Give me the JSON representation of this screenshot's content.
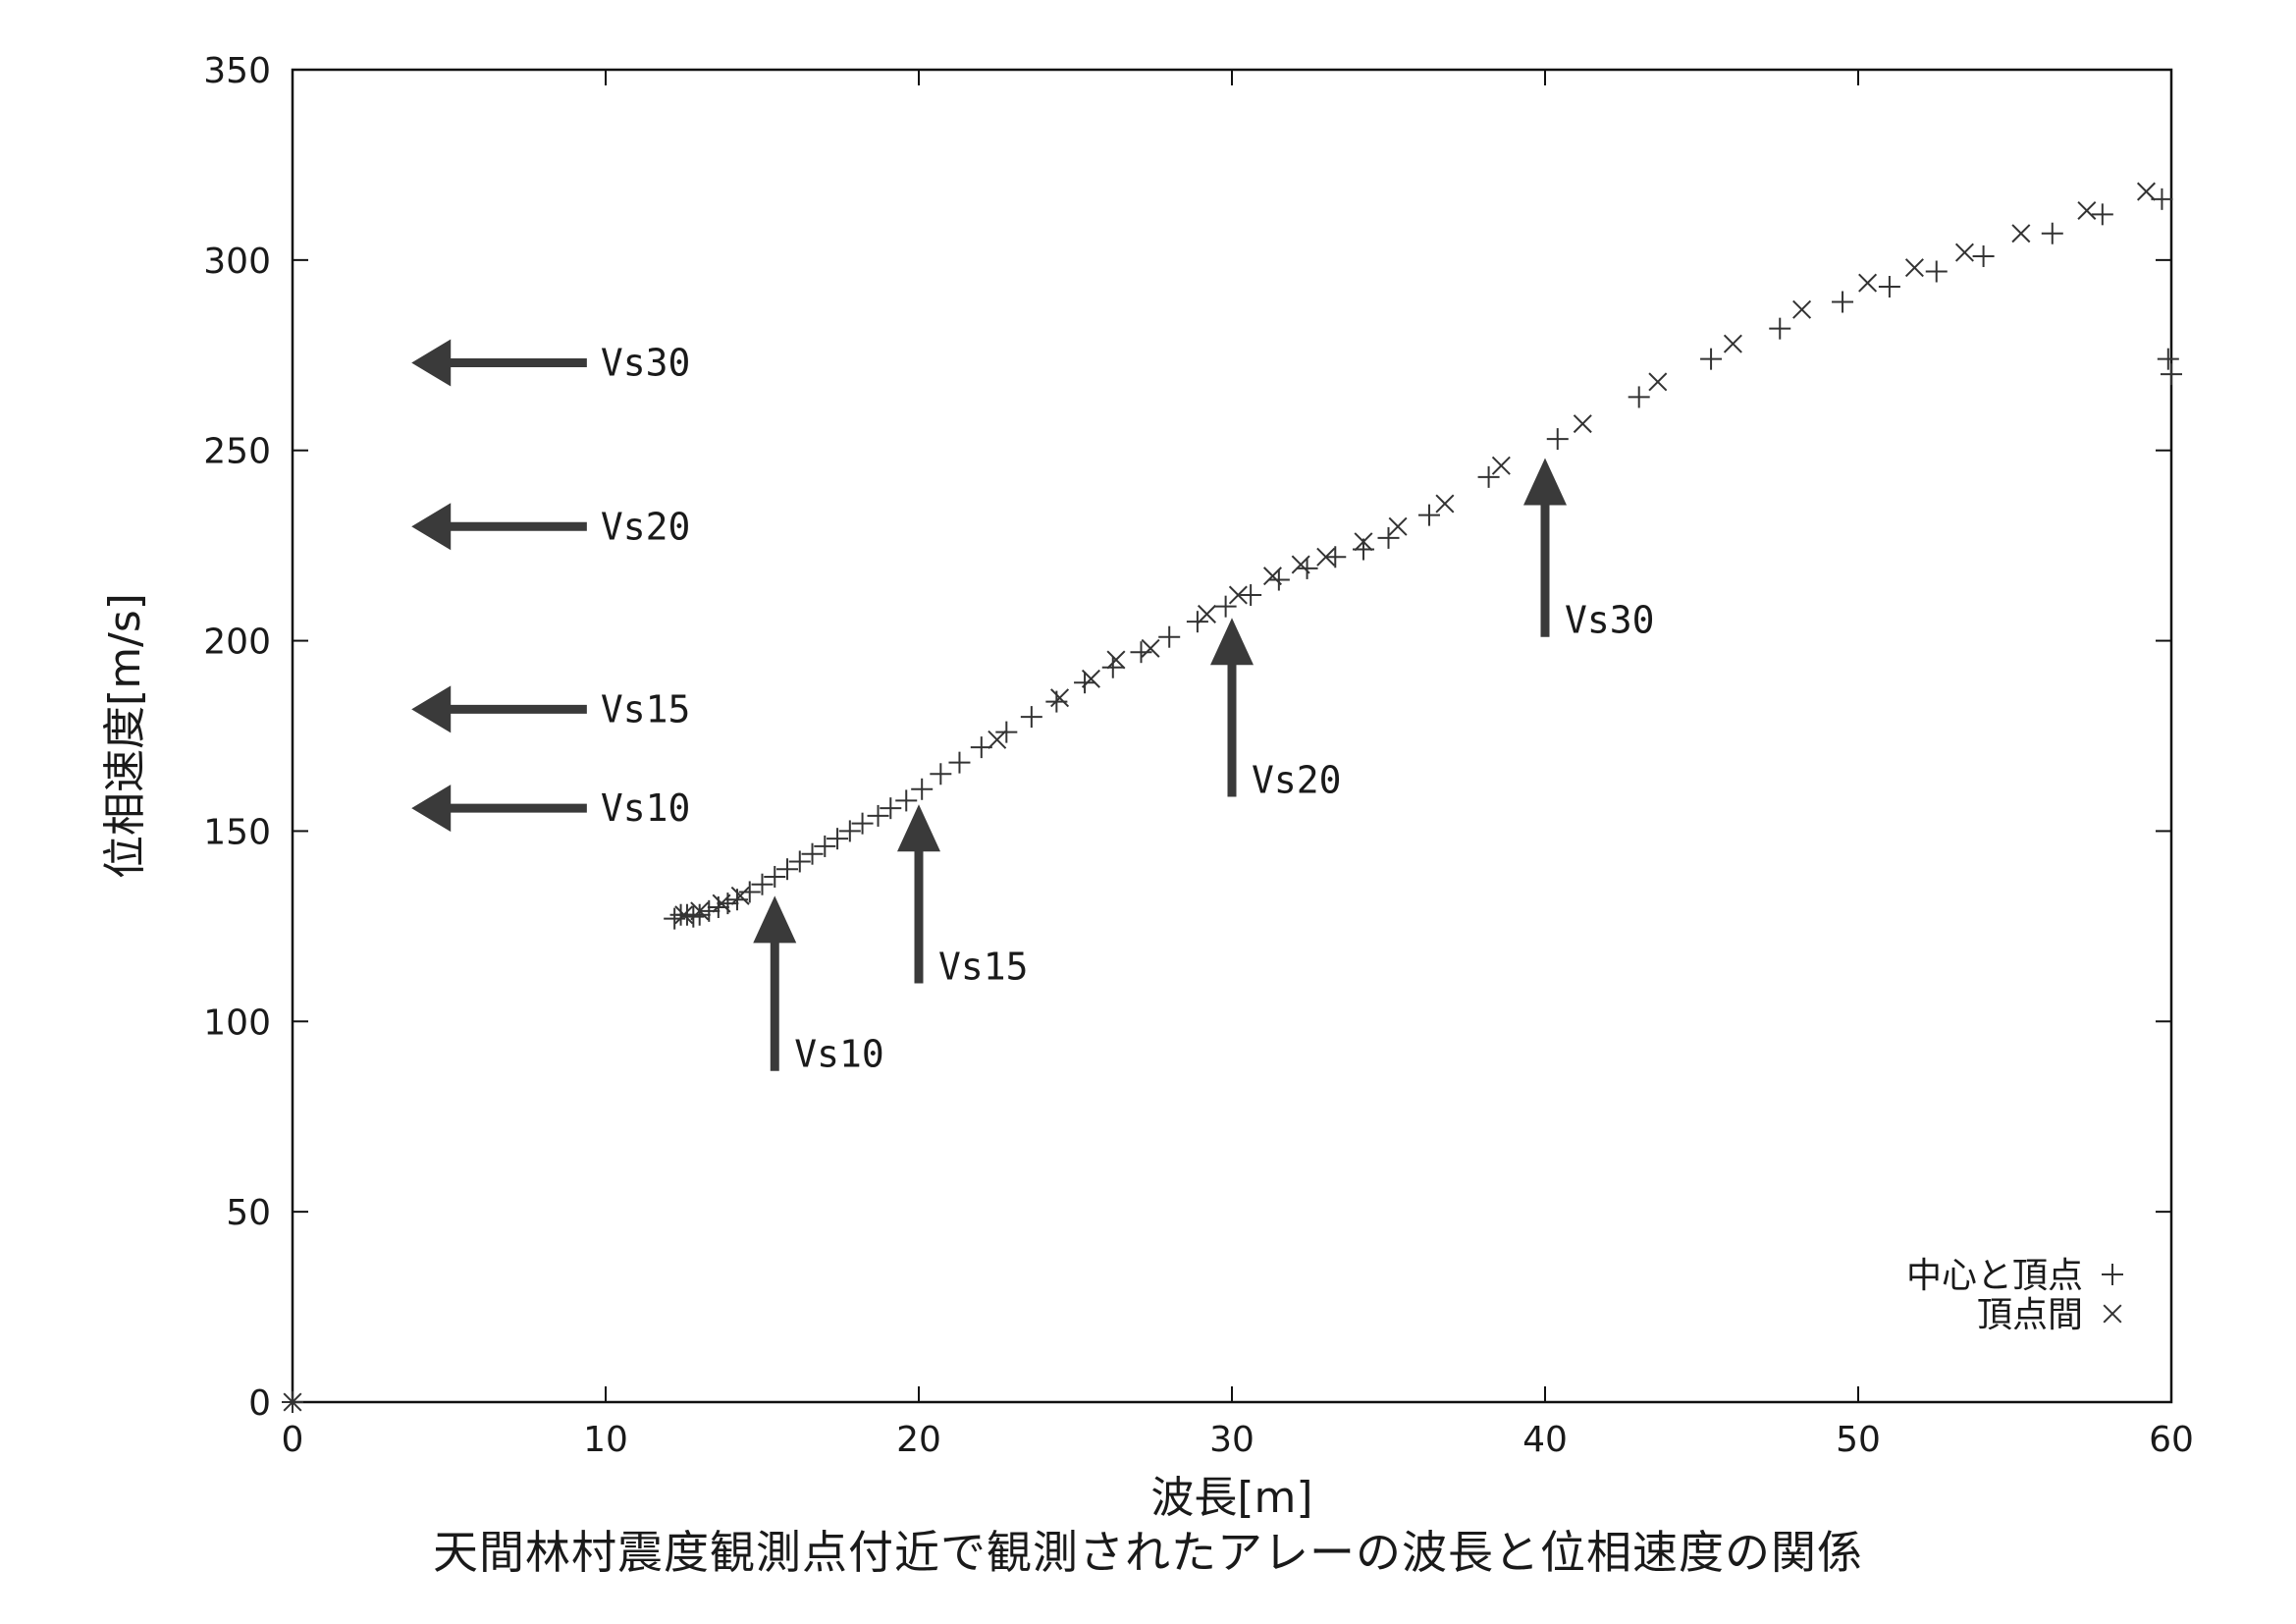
{
  "chart_data": {
    "type": "scatter",
    "title": "天間林村震度観測点付近で観測されたアレーの波長と位相速度の関係",
    "xlabel": "波長[m]",
    "ylabel": "位相速度[m/s]",
    "xlim": [
      0,
      60
    ],
    "ylim": [
      0,
      350
    ],
    "xticks": [
      "0",
      "10",
      "20",
      "30",
      "40",
      "50",
      "60"
    ],
    "yticks": [
      "0",
      "50",
      "100",
      "150",
      "200",
      "250",
      "300",
      "350"
    ],
    "grid": false,
    "legend_position": "bottom-right",
    "series": [
      {
        "name": "中心と頂点",
        "marker": "plus",
        "points": [
          [
            0,
            0
          ],
          [
            12.2,
            127
          ],
          [
            12.4,
            128
          ],
          [
            12.6,
            128
          ],
          [
            12.8,
            127.5
          ],
          [
            13.0,
            128
          ],
          [
            13.3,
            129
          ],
          [
            13.6,
            130
          ],
          [
            13.9,
            131
          ],
          [
            14.2,
            132
          ],
          [
            14.6,
            134
          ],
          [
            15.0,
            136
          ],
          [
            15.4,
            138
          ],
          [
            15.8,
            140
          ],
          [
            16.2,
            142
          ],
          [
            16.6,
            144
          ],
          [
            17.0,
            146
          ],
          [
            17.4,
            148
          ],
          [
            17.8,
            150
          ],
          [
            18.2,
            152
          ],
          [
            18.7,
            154
          ],
          [
            19.1,
            156
          ],
          [
            19.6,
            158
          ],
          [
            20.1,
            161
          ],
          [
            20.7,
            165
          ],
          [
            21.3,
            168
          ],
          [
            22.0,
            172
          ],
          [
            22.8,
            176
          ],
          [
            23.6,
            180
          ],
          [
            24.4,
            184
          ],
          [
            25.3,
            189
          ],
          [
            26.2,
            193
          ],
          [
            27.1,
            197
          ],
          [
            28.0,
            201
          ],
          [
            28.9,
            205
          ],
          [
            29.8,
            209
          ],
          [
            30.6,
            212
          ],
          [
            31.5,
            216
          ],
          [
            32.4,
            219
          ],
          [
            33.3,
            222
          ],
          [
            34.2,
            224
          ],
          [
            35.0,
            227
          ],
          [
            36.3,
            233
          ],
          [
            38.2,
            243
          ],
          [
            40.4,
            253
          ],
          [
            43.0,
            264
          ],
          [
            45.3,
            274
          ],
          [
            47.5,
            282
          ],
          [
            49.5,
            289
          ],
          [
            51.0,
            293
          ],
          [
            52.5,
            297
          ],
          [
            54.0,
            301
          ],
          [
            56.2,
            307
          ],
          [
            57.8,
            312
          ],
          [
            59.7,
            316
          ],
          [
            59.9,
            274
          ],
          [
            60.0,
            270
          ]
        ]
      },
      {
        "name": "頂点間",
        "marker": "cross",
        "points": [
          [
            0,
            0
          ],
          [
            12.5,
            128
          ],
          [
            13.0,
            129
          ],
          [
            13.7,
            131
          ],
          [
            14.3,
            133
          ],
          [
            22.5,
            174
          ],
          [
            24.5,
            185
          ],
          [
            25.5,
            190
          ],
          [
            26.3,
            195
          ],
          [
            27.4,
            198
          ],
          [
            29.2,
            207
          ],
          [
            30.2,
            212
          ],
          [
            31.3,
            217
          ],
          [
            32.2,
            220
          ],
          [
            33.0,
            222
          ],
          [
            34.2,
            226
          ],
          [
            35.3,
            230
          ],
          [
            36.8,
            236
          ],
          [
            38.6,
            246
          ],
          [
            41.2,
            257
          ],
          [
            43.6,
            268
          ],
          [
            46.0,
            278
          ],
          [
            48.2,
            287
          ],
          [
            50.3,
            294
          ],
          [
            51.8,
            298
          ],
          [
            53.4,
            302
          ],
          [
            55.2,
            307
          ],
          [
            57.3,
            313
          ],
          [
            59.2,
            318
          ]
        ]
      }
    ],
    "annotations": [
      {
        "direction": "left",
        "label": "Vs30",
        "x_from": 9.4,
        "x_to": 3.8,
        "y": 273
      },
      {
        "direction": "left",
        "label": "Vs20",
        "x_from": 9.4,
        "x_to": 3.8,
        "y": 230
      },
      {
        "direction": "left",
        "label": "Vs15",
        "x_from": 9.4,
        "x_to": 3.8,
        "y": 182
      },
      {
        "direction": "left",
        "label": "Vs10",
        "x_from": 9.4,
        "x_to": 3.8,
        "y": 156
      },
      {
        "direction": "up",
        "label": "Vs10",
        "x": 15.4,
        "y_from": 87,
        "y_to": 133
      },
      {
        "direction": "up",
        "label": "Vs15",
        "x": 20.0,
        "y_from": 110,
        "y_to": 157
      },
      {
        "direction": "up",
        "label": "Vs20",
        "x": 30.0,
        "y_from": 159,
        "y_to": 206
      },
      {
        "direction": "up",
        "label": "Vs30",
        "x": 40.0,
        "y_from": 201,
        "y_to": 248
      }
    ]
  }
}
